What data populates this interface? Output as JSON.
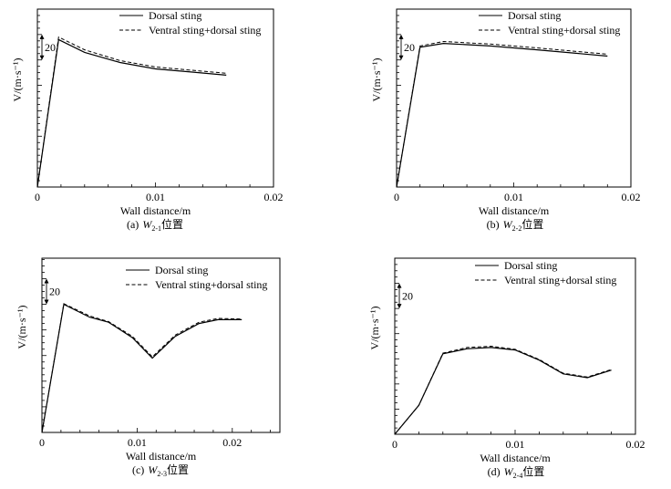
{
  "chart_data": [
    {
      "type": "line",
      "caption": {
        "label": "(a)",
        "var": "W",
        "sub": "2-1",
        "suffix": "位置"
      },
      "xlabel": "Wall distance/m",
      "ylabel": "V/(m·s⁻¹)",
      "scale_bar": "20",
      "xlim": [
        0,
        0.02
      ],
      "ylim": [
        0,
        140
      ],
      "xticks": [
        {
          "v": 0,
          "label": "0"
        },
        {
          "v": 0.01,
          "label": "0.01"
        },
        {
          "v": 0.02,
          "label": "0.02"
        }
      ],
      "legend": "top-right",
      "series": [
        {
          "name": "Dorsal sting",
          "style": "solid",
          "x": [
            0,
            0.0018,
            0.004,
            0.007,
            0.01,
            0.013,
            0.016
          ],
          "y": [
            0,
            116,
            106,
            98,
            93,
            90.5,
            88
          ]
        },
        {
          "name": "Ventral sting+dorsal sting",
          "style": "dashed",
          "x": [
            0,
            0.0018,
            0.004,
            0.007,
            0.01,
            0.013,
            0.016
          ],
          "y": [
            0,
            118,
            108,
            99.5,
            94.5,
            92,
            89.5
          ]
        }
      ]
    },
    {
      "type": "line",
      "caption": {
        "label": "(b)",
        "var": "W",
        "sub": "2-2",
        "suffix": "位置"
      },
      "xlabel": "Wall distance/m",
      "ylabel": "V/(m·s⁻¹)",
      "scale_bar": "20",
      "xlim": [
        0,
        0.02
      ],
      "ylim": [
        0,
        140
      ],
      "xticks": [
        {
          "v": 0,
          "label": "0"
        },
        {
          "v": 0.01,
          "label": "0.01"
        },
        {
          "v": 0.02,
          "label": "0.02"
        }
      ],
      "legend": "top-right",
      "series": [
        {
          "name": "Dorsal sting",
          "style": "solid",
          "x": [
            0,
            0.002,
            0.004,
            0.008,
            0.012,
            0.018
          ],
          "y": [
            0,
            110,
            113,
            111,
            108,
            103
          ]
        },
        {
          "name": "Ventral sting+dorsal sting",
          "style": "dashed",
          "x": [
            0,
            0.002,
            0.004,
            0.008,
            0.012,
            0.018
          ],
          "y": [
            0,
            111,
            114.5,
            112.5,
            109.5,
            104.5
          ]
        }
      ]
    },
    {
      "type": "line",
      "caption": {
        "label": "(c)",
        "var": "W",
        "sub": "2-3",
        "suffix": "位置"
      },
      "xlabel": "Wall distance/m",
      "ylabel": "V/(m·s⁻¹)",
      "scale_bar": "20",
      "xlim": [
        0,
        0.025
      ],
      "ylim": [
        0,
        136
      ],
      "xticks": [
        {
          "v": 0,
          "label": "0"
        },
        {
          "v": 0.01,
          "label": "0.01"
        },
        {
          "v": 0.02,
          "label": "0.02"
        }
      ],
      "legend": "top-right",
      "series": [
        {
          "name": "Dorsal sting",
          "style": "solid",
          "x": [
            0,
            0.0023,
            0.005,
            0.007,
            0.0095,
            0.0116,
            0.014,
            0.0165,
            0.0185,
            0.021
          ],
          "y": [
            0,
            100,
            90,
            86,
            74,
            58,
            75,
            85,
            88,
            88
          ]
        },
        {
          "name": "Ventral sting+dorsal sting",
          "style": "dashed",
          "x": [
            0,
            0.0023,
            0.005,
            0.007,
            0.0095,
            0.0116,
            0.014,
            0.0165,
            0.0185,
            0.021
          ],
          "y": [
            0,
            100.5,
            91,
            86.5,
            75,
            59,
            76,
            86,
            89,
            88.5
          ]
        }
      ]
    },
    {
      "type": "line",
      "caption": {
        "label": "(d)",
        "var": "W",
        "sub": "2-4",
        "suffix": "位置"
      },
      "xlabel": "Wall distance/m",
      "ylabel": "V/(m·s⁻¹)",
      "scale_bar": "20",
      "xlim": [
        0,
        0.02
      ],
      "ylim": [
        0,
        140
      ],
      "xticks": [
        {
          "v": 0,
          "label": "0"
        },
        {
          "v": 0.01,
          "label": "0.01"
        },
        {
          "v": 0.02,
          "label": "0.02"
        }
      ],
      "legend": "top-right",
      "series": [
        {
          "name": "Dorsal sting",
          "style": "solid",
          "x": [
            0,
            0.002,
            0.004,
            0.006,
            0.008,
            0.01,
            0.012,
            0.014,
            0.016,
            0.018
          ],
          "y": [
            0,
            23,
            64,
            68,
            69,
            67,
            59,
            48,
            45,
            51
          ]
        },
        {
          "name": "Ventral sting+dorsal sting",
          "style": "dashed",
          "x": [
            0,
            0.002,
            0.004,
            0.006,
            0.008,
            0.01,
            0.012,
            0.014,
            0.016,
            0.018
          ],
          "y": [
            0,
            23,
            64.5,
            69,
            70,
            67.5,
            59.5,
            48.5,
            45.5,
            51.5
          ]
        }
      ]
    }
  ]
}
